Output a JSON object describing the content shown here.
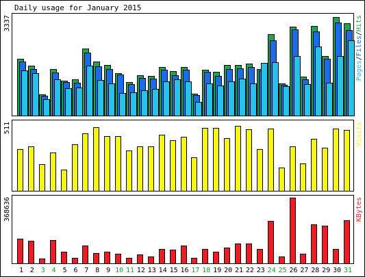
{
  "chart_data": {
    "type": "bar",
    "title": "Daily usage for January 2015",
    "x": [
      "1",
      "2",
      "3",
      "4",
      "5",
      "6",
      "7",
      "8",
      "9",
      "10",
      "11",
      "12",
      "13",
      "14",
      "15",
      "16",
      "17",
      "18",
      "19",
      "20",
      "21",
      "22",
      "23",
      "24",
      "25",
      "26",
      "27",
      "28",
      "29",
      "30",
      "31"
    ],
    "weekend_days": [
      "3",
      "4",
      "10",
      "11",
      "17",
      "18",
      "24",
      "25",
      "31"
    ],
    "panels": [
      {
        "id": "top",
        "ymax_label": "3337",
        "legend": [
          "Pages",
          "/",
          "Files",
          "/",
          "Hits"
        ],
        "ylim": [
          0,
          3337
        ],
        "series": [
          {
            "name": "Hits",
            "color": "#1fa64a",
            "values": [
              1890,
              1660,
              710,
              1550,
              1160,
              1210,
              2250,
              1810,
              1700,
              1420,
              1120,
              1340,
              1320,
              1620,
              1480,
              1620,
              740,
              1530,
              1470,
              1680,
              1700,
              1740,
              1560,
              2710,
              1080,
              2980,
              1300,
              3000,
              1980,
              3280,
              3080
            ]
          },
          {
            "name": "Files",
            "color": "#1a6ce8",
            "values": [
              1810,
              1560,
              670,
              1450,
              1110,
              1090,
              2100,
              1650,
              1560,
              1370,
              1050,
              1250,
              1230,
              1520,
              1350,
              1530,
              680,
              1470,
              1320,
              1550,
              1580,
              1620,
              1510,
              2520,
              1020,
              2870,
              1210,
              2800,
              1900,
              3100,
              2850
            ]
          },
          {
            "name": "Pages",
            "color": "#26c2ea",
            "values": [
              1510,
              1410,
              540,
              1200,
              920,
              930,
              1660,
              1180,
              1080,
              750,
              780,
              850,
              890,
              1140,
              1200,
              1140,
              460,
              1080,
              1000,
              1140,
              1230,
              1080,
              1760,
              1780,
              990,
              1990,
              1040,
              2310,
              1090,
              1990,
              2520
            ]
          }
        ]
      },
      {
        "id": "middle",
        "ymax_label": "511",
        "legend": [
          "Visits"
        ],
        "ylim": [
          0,
          550
        ],
        "series": [
          {
            "name": "Visits",
            "color": "#f5f51a",
            "values": [
              337,
              360,
              215,
              308,
              168,
              373,
              463,
              511,
              440,
              440,
              325,
              355,
              355,
              453,
              405,
              436,
              272,
              508,
              508,
              423,
              521,
              496,
              338,
              499,
              188,
              357,
              218,
              417,
              345,
              500,
              488
            ]
          }
        ]
      },
      {
        "id": "bottom",
        "ymax_label": "368636",
        "legend": [
          "KBytes"
        ],
        "ylim": [
          0,
          368636
        ],
        "series": [
          {
            "name": "KBytes",
            "color": "#ee1c23",
            "values": [
              140000,
              128000,
              26000,
              131000,
              66000,
              32000,
              100000,
              57000,
              64000,
              52000,
              30000,
              48000,
              38000,
              82000,
              78000,
              100000,
              30000,
              80000,
              65000,
              90000,
              112000,
              110000,
              82000,
              238000,
              38000,
              368636,
              55000,
              220000,
              212000,
              79000,
              241000
            ]
          }
        ]
      }
    ]
  }
}
